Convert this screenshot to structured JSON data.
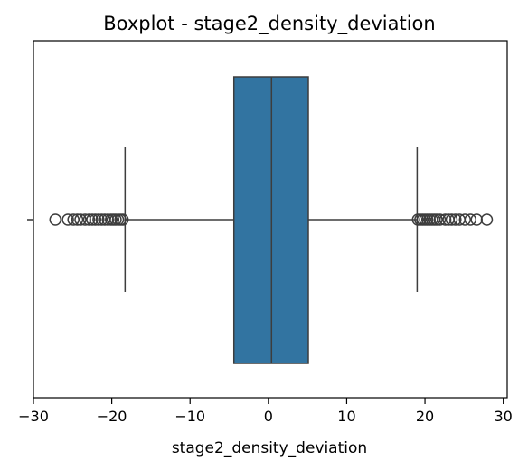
{
  "chart_data": {
    "type": "box",
    "title": "Boxplot - stage2_density_deviation",
    "xlabel": "stage2_density_deviation",
    "ylabel": "",
    "orientation": "horizontal",
    "xlim": [
      -30,
      30.5
    ],
    "xticks": [
      -30,
      -20,
      -10,
      0,
      10,
      20,
      30
    ],
    "xtick_labels": [
      "−30",
      "−20",
      "−10",
      "0",
      "10",
      "20",
      "30"
    ],
    "grid": false,
    "box": {
      "whisker_low": -18.3,
      "q1": -4.4,
      "median": 0.4,
      "q3": 5.1,
      "whisker_high": 19.0
    },
    "outliers_low": [
      -27.2,
      -25.6,
      -24.9,
      -24.4,
      -24.0,
      -23.4,
      -22.9,
      -22.5,
      -22.1,
      -21.7,
      -21.3,
      -20.9,
      -20.5,
      -20.1,
      -19.8,
      -19.5,
      -19.2,
      -18.9,
      -18.6
    ],
    "outliers_high": [
      19.1,
      19.4,
      19.7,
      20.0,
      20.3,
      20.6,
      20.9,
      21.2,
      21.5,
      21.9,
      22.6,
      23.0,
      23.4,
      23.9,
      24.4,
      25.1,
      25.8,
      26.6,
      27.9
    ],
    "colors": {
      "box_fill": "#3274a1",
      "line": "#3d3d3d"
    }
  }
}
